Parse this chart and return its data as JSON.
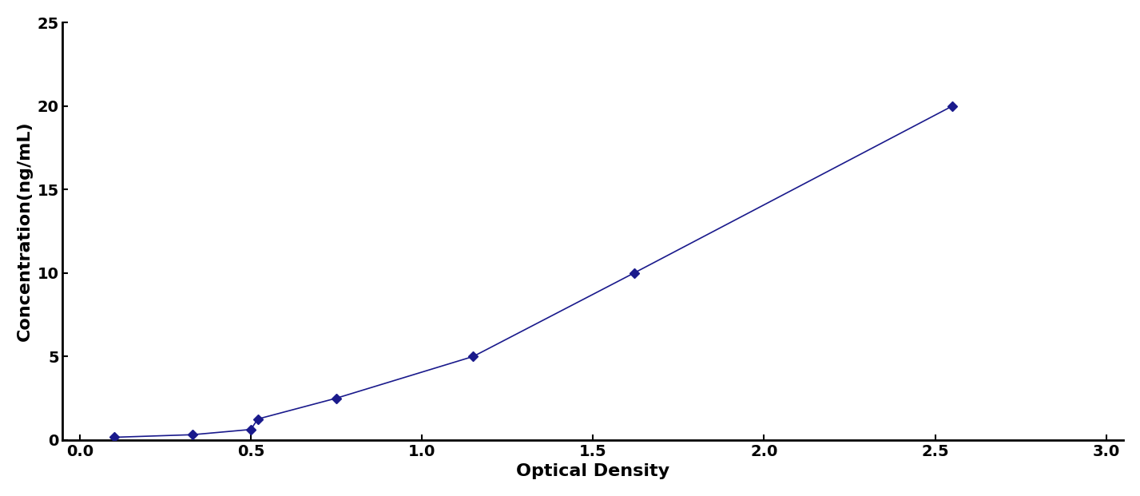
{
  "x": [
    0.1,
    0.33,
    0.5,
    0.52,
    0.75,
    1.15,
    1.62,
    2.55
  ],
  "y": [
    0.156,
    0.312,
    0.625,
    1.25,
    2.5,
    5.0,
    10.0,
    20.0
  ],
  "line_color": "#1a1a8c",
  "marker": "D",
  "marker_size": 6,
  "line_style": "-",
  "line_width": 1.2,
  "xlabel": "Optical Density",
  "ylabel": "Concentration(ng/mL)",
  "xlabel_fontsize": 16,
  "ylabel_fontsize": 16,
  "xlabel_fontweight": "bold",
  "ylabel_fontweight": "bold",
  "xlim": [
    -0.05,
    3.05
  ],
  "ylim": [
    0,
    25
  ],
  "xticks": [
    0,
    0.5,
    1.0,
    1.5,
    2.0,
    2.5,
    3.0
  ],
  "yticks": [
    0,
    5,
    10,
    15,
    20,
    25
  ],
  "tick_fontsize": 14,
  "tick_fontweight": "bold",
  "background_color": "#ffffff",
  "spine_linewidth": 2.0
}
